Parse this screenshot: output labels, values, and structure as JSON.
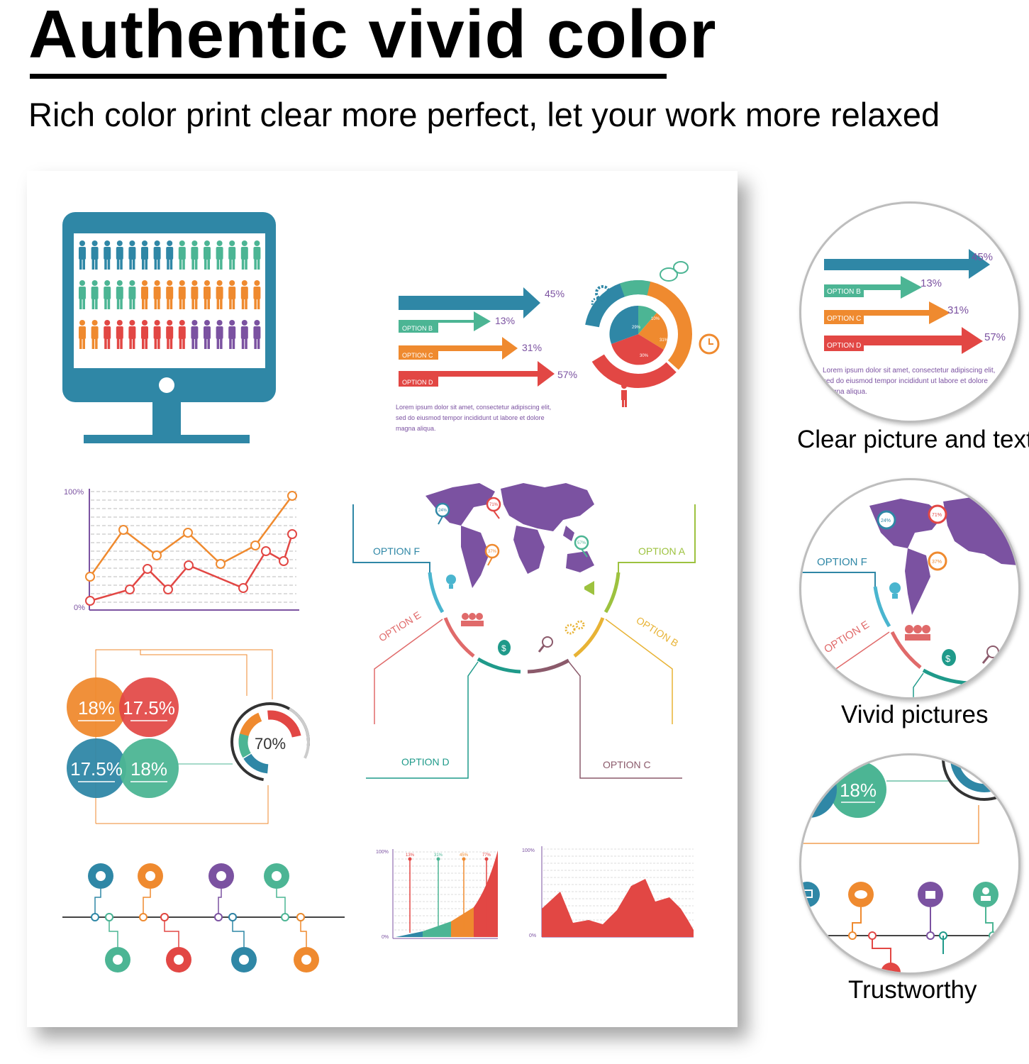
{
  "header": {
    "title": "Authentic vivid color",
    "subtitle": "Rich color print clear more perfect, let your work more relaxed"
  },
  "colors": {
    "teal": "#2f87a6",
    "green": "#4cb594",
    "orange": "#ef8a2f",
    "red": "#e24744",
    "purple": "#7b52a1",
    "yellow": "#e8b335",
    "lime": "#9dc23f"
  },
  "poster": {
    "arrows": {
      "rows": [
        {
          "label": "",
          "value": "45%"
        },
        {
          "label": "OPTION B",
          "value": "13%"
        },
        {
          "label": "OPTION C",
          "value": "31%"
        },
        {
          "label": "OPTION D",
          "value": "57%"
        }
      ],
      "caption_lines": [
        "Lorem ipsum dolor sit amet, consectetur adipiscing elit,",
        "sed do eiusmod tempor incididunt ut labore et dolore",
        "magna aliqua."
      ]
    },
    "donut": {
      "labels": [
        "29%",
        "10%",
        "31%",
        "30%"
      ]
    },
    "line_chart": {
      "y_top": "100%",
      "y_bottom": "0%"
    },
    "circles": {
      "values": [
        "18%",
        "17.5%",
        "17.5%",
        "18%"
      ],
      "ring_value": "70%"
    },
    "map": {
      "options": [
        "OPTION F",
        "OPTION A",
        "OPTION E",
        "OPTION B",
        "OPTION D",
        "OPTION C"
      ],
      "pins": [
        "24%",
        "71%",
        "37%",
        "57%"
      ]
    },
    "bar_chart": {
      "y_top": "100%",
      "y_bottom": "0%",
      "marks": [
        "13%",
        "31%",
        "45%",
        "77%"
      ]
    },
    "area_chart": {
      "y_top": "100%",
      "y_bottom": "0%"
    }
  },
  "zooms": [
    {
      "caption": "Clear picture and text"
    },
    {
      "caption": "Vivid pictures"
    },
    {
      "caption": "Trustworthy"
    }
  ]
}
